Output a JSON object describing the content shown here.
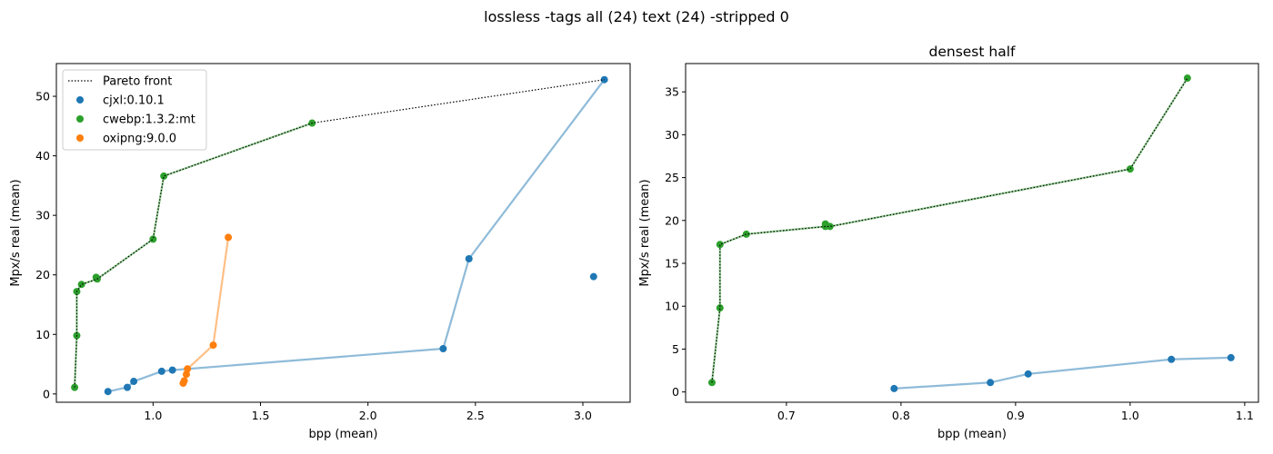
{
  "figure": {
    "suptitle": "lossless -tags all (24) text (24) -stripped 0"
  },
  "colors": {
    "cjxl": "#1f77b4",
    "cwebp": "#2ca02c",
    "oxipng": "#ff7f0e",
    "pareto": "#000000"
  },
  "legend": {
    "placement": "top-left",
    "entries": [
      {
        "label": "Pareto front",
        "style": "dotted-line",
        "color": "#000000"
      },
      {
        "label": "cjxl:0.10.1",
        "style": "marker",
        "color": "#1f77b4"
      },
      {
        "label": "cwebp:1.3.2:mt",
        "style": "marker",
        "color": "#2ca02c"
      },
      {
        "label": "oxipng:9.0.0",
        "style": "marker",
        "color": "#ff7f0e"
      }
    ]
  },
  "chart_data": [
    {
      "type": "scatter",
      "title": "",
      "xlabel": "bpp (mean)",
      "ylabel": "Mpx/s real (mean)",
      "xlim": [
        0.55,
        3.22
      ],
      "ylim": [
        -1.4,
        55.5
      ],
      "xticks": [
        1.0,
        1.5,
        2.0,
        2.5,
        3.0
      ],
      "xtick_labels": [
        "1.0",
        "1.5",
        "2.0",
        "2.5",
        "3.0"
      ],
      "yticks": [
        0,
        10,
        20,
        30,
        40,
        50
      ],
      "ytick_labels": [
        "0",
        "10",
        "20",
        "30",
        "40",
        "50"
      ],
      "grid": false,
      "legend": true,
      "series": [
        {
          "key": "cjxl",
          "color": "#1f77b4",
          "points": [
            [
              0.79,
              0.4
            ],
            [
              0.88,
              1.1
            ],
            [
              0.91,
              2.1
            ],
            [
              1.04,
              3.8
            ],
            [
              1.09,
              4.0
            ],
            [
              2.35,
              7.6
            ],
            [
              2.47,
              22.7
            ],
            [
              3.1,
              52.8
            ],
            [
              3.05,
              19.7
            ]
          ],
          "line": [
            [
              0.79,
              0.4
            ],
            [
              0.88,
              1.1
            ],
            [
              0.91,
              2.1
            ],
            [
              1.04,
              3.8
            ],
            [
              1.09,
              4.0
            ],
            [
              2.35,
              7.6
            ],
            [
              2.47,
              22.7
            ],
            [
              3.1,
              52.8
            ]
          ]
        },
        {
          "key": "cwebp",
          "color": "#2ca02c",
          "points": [
            [
              0.635,
              1.1
            ],
            [
              0.645,
              9.8
            ],
            [
              0.645,
              17.2
            ],
            [
              0.667,
              18.4
            ],
            [
              0.735,
              19.6
            ],
            [
              0.74,
              19.3
            ],
            [
              1.0,
              26.0
            ],
            [
              1.05,
              36.6
            ],
            [
              1.74,
              45.5
            ]
          ],
          "line": [
            [
              0.635,
              1.1
            ],
            [
              0.645,
              9.8
            ],
            [
              0.645,
              17.2
            ],
            [
              0.667,
              18.4
            ],
            [
              0.74,
              19.3
            ],
            [
              1.0,
              26.0
            ],
            [
              1.05,
              36.6
            ],
            [
              1.74,
              45.5
            ]
          ]
        },
        {
          "key": "oxipng",
          "color": "#ff7f0e",
          "points": [
            [
              1.14,
              1.8
            ],
            [
              1.145,
              2.2
            ],
            [
              1.155,
              3.3
            ],
            [
              1.16,
              4.2
            ],
            [
              1.28,
              8.2
            ],
            [
              1.35,
              26.3
            ]
          ],
          "line": [
            [
              1.14,
              1.8
            ],
            [
              1.145,
              2.2
            ],
            [
              1.155,
              3.3
            ],
            [
              1.16,
              4.2
            ],
            [
              1.28,
              8.2
            ],
            [
              1.35,
              26.3
            ]
          ]
        }
      ],
      "pareto": [
        [
          0.635,
          1.1
        ],
        [
          0.645,
          9.8
        ],
        [
          0.645,
          17.2
        ],
        [
          0.667,
          18.4
        ],
        [
          0.74,
          19.3
        ],
        [
          1.0,
          26.0
        ],
        [
          1.05,
          36.6
        ],
        [
          1.74,
          45.5
        ],
        [
          3.1,
          52.8
        ]
      ]
    },
    {
      "type": "scatter",
      "title": "densest half",
      "xlabel": "bpp (mean)",
      "ylabel": "Mpx/s real (mean)",
      "xlim": [
        0.612,
        1.112
      ],
      "ylim": [
        -1.2,
        38.3
      ],
      "xticks": [
        0.7,
        0.8,
        0.9,
        1.0,
        1.1
      ],
      "xtick_labels": [
        "0.7",
        "0.8",
        "0.9",
        "1.0",
        "1.1"
      ],
      "yticks": [
        0,
        5,
        10,
        15,
        20,
        25,
        30,
        35
      ],
      "ytick_labels": [
        "0",
        "5",
        "10",
        "15",
        "20",
        "25",
        "30",
        "35"
      ],
      "grid": false,
      "legend": false,
      "series": [
        {
          "key": "cjxl",
          "color": "#1f77b4",
          "points": [
            [
              0.794,
              0.4
            ],
            [
              0.878,
              1.1
            ],
            [
              0.911,
              2.1
            ],
            [
              1.036,
              3.8
            ],
            [
              1.088,
              4.0
            ]
          ],
          "line": [
            [
              0.794,
              0.4
            ],
            [
              0.878,
              1.1
            ],
            [
              0.911,
              2.1
            ],
            [
              1.036,
              3.8
            ],
            [
              1.088,
              4.0
            ]
          ]
        },
        {
          "key": "cwebp",
          "color": "#2ca02c",
          "points": [
            [
              0.635,
              1.1
            ],
            [
              0.642,
              9.8
            ],
            [
              0.642,
              17.2
            ],
            [
              0.665,
              18.4
            ],
            [
              0.734,
              19.6
            ],
            [
              0.734,
              19.3
            ],
            [
              0.738,
              19.3
            ],
            [
              1.0,
              26.0
            ],
            [
              1.05,
              36.6
            ]
          ],
          "line": [
            [
              0.635,
              1.1
            ],
            [
              0.642,
              9.8
            ],
            [
              0.642,
              17.2
            ],
            [
              0.665,
              18.4
            ],
            [
              0.734,
              19.3
            ],
            [
              0.738,
              19.3
            ],
            [
              1.0,
              26.0
            ],
            [
              1.05,
              36.6
            ]
          ]
        }
      ],
      "pareto": [
        [
          0.635,
          1.1
        ],
        [
          0.642,
          9.8
        ],
        [
          0.642,
          17.2
        ],
        [
          0.665,
          18.4
        ],
        [
          0.734,
          19.3
        ],
        [
          0.738,
          19.3
        ],
        [
          1.0,
          26.0
        ],
        [
          1.05,
          36.6
        ]
      ]
    }
  ]
}
